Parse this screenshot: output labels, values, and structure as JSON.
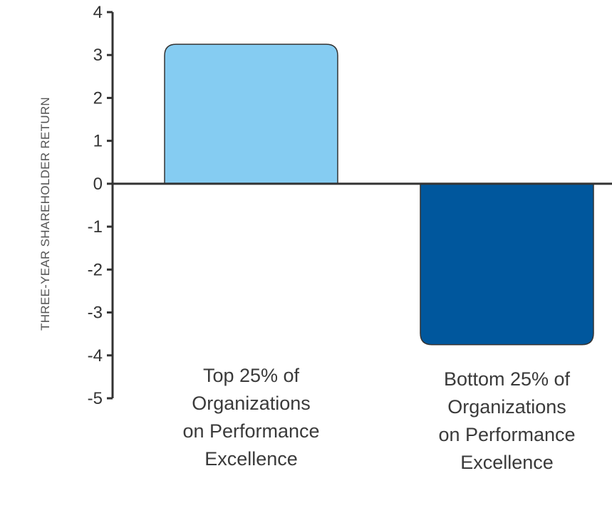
{
  "chart_data": {
    "type": "bar",
    "categories": [
      [
        "Top 25% of",
        "Organizations",
        "on Performance",
        "Excellence"
      ],
      [
        "Bottom 25% of",
        "Organizations",
        "on Performance",
        "Excellence"
      ]
    ],
    "values": [
      3.25,
      -3.75
    ],
    "colors": [
      "#85ccf2",
      "#00579d"
    ],
    "ylabel": "THREE-YEAR SHAREHOLDER RETURN",
    "ylim": [
      -5,
      4
    ],
    "yticks": [
      "4",
      "3",
      "2",
      "1",
      "0",
      "-1",
      "-2",
      "-3",
      "-4",
      "-5"
    ],
    "grid": false
  }
}
